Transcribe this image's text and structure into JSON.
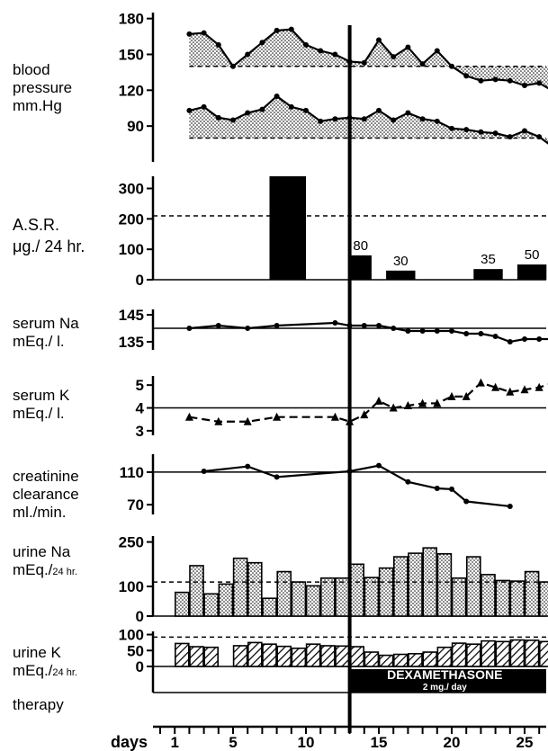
{
  "days_label": "days",
  "x_ticks": [
    1,
    5,
    10,
    15,
    20,
    25
  ],
  "colors": {
    "ink": "#000000",
    "fill": "#b8b8b8",
    "background": "#ffffff"
  },
  "panels": {
    "bp": {
      "label_lines": [
        "blood",
        "pressure",
        "mm.Hg"
      ]
    },
    "asr": {
      "line1": "A.S.R.",
      "line2_main": "μg./ 24 hr."
    },
    "na": {
      "line1": "serum Na",
      "line2": "mEq./ l."
    },
    "k": {
      "line1": "serum K",
      "line2": "mEq./ l."
    },
    "cr": {
      "label_lines": [
        "creatinine",
        "clearance",
        "ml./min."
      ]
    },
    "una": {
      "line1": "urine Na",
      "line2_main": "mEq./",
      "line2_sub": "24 hr."
    },
    "uk": {
      "line1": "urine K",
      "line2_main": "mEq./",
      "line2_sub": "24 hr."
    },
    "therapy": {
      "label": "therapy",
      "drug": "DEXAMETHASONE",
      "dose": "2 mg./ day"
    }
  },
  "chart_data": {
    "type": "multi-panel",
    "x_label": "days",
    "x_range": [
      0,
      28
    ],
    "therapy_start_day": 13,
    "panels": [
      {
        "id": "bp",
        "type": "line",
        "ylabel": "blood pressure mm.Hg",
        "y_ticks": [
          90,
          120,
          150,
          180
        ],
        "ylim": [
          60,
          185
        ],
        "systolic_reference": 140,
        "diastolic_reference": 80,
        "series": [
          {
            "x": [
              2,
              3,
              4,
              5,
              6,
              7,
              8,
              9,
              10,
              11,
              12,
              13,
              14,
              15,
              16,
              17,
              18,
              19,
              20,
              21,
              22,
              23,
              24,
              25,
              26,
              27
            ],
            "y": [
              167,
              168,
              158,
              140,
              150,
              160,
              170,
              171,
              158,
              153,
              150,
              144,
              143,
              162,
              148,
              156,
              142,
              153,
              140,
              132,
              128,
              129,
              128,
              124,
              126,
              119
            ]
          },
          {
            "x": [
              2,
              3,
              4,
              5,
              6,
              7,
              8,
              9,
              10,
              11,
              12,
              13,
              14,
              15,
              16,
              17,
              18,
              19,
              20,
              21,
              22,
              23,
              24,
              25,
              26,
              27
            ],
            "y": [
              103,
              106,
              97,
              95,
              101,
              104,
              115,
              106,
              103,
              94,
              96,
              97,
              96,
              103,
              95,
              101,
              96,
              94,
              88,
              87,
              85,
              84,
              81,
              86,
              81,
              72
            ]
          }
        ]
      },
      {
        "id": "asr",
        "type": "bar",
        "ylabel": "A.S.R. μg./ 24 hr.",
        "y_ticks": [
          0,
          100,
          200,
          300
        ],
        "ylim": [
          0,
          340
        ],
        "reference": 210,
        "bars": [
          {
            "day_start": 7.5,
            "day_end": 10,
            "value": 370,
            "label": ""
          },
          {
            "day_start": 13,
            "day_end": 14.5,
            "value": 80,
            "label": "80"
          },
          {
            "day_start": 15.5,
            "day_end": 17.5,
            "value": 30,
            "label": "30"
          },
          {
            "day_start": 21.5,
            "day_end": 23.5,
            "value": 35,
            "label": "35"
          },
          {
            "day_start": 24.5,
            "day_end": 26.5,
            "value": 50,
            "label": "50"
          }
        ]
      },
      {
        "id": "na",
        "type": "line",
        "ylabel": "serum Na mEq./ l.",
        "y_ticks": [
          135,
          145
        ],
        "ylim": [
          132,
          147
        ],
        "reference": 140,
        "series": [
          {
            "x": [
              2,
              4,
              6,
              8,
              12,
              13,
              14,
              15,
              16,
              17,
              18,
              19,
              20,
              21,
              22,
              23,
              24,
              25,
              26,
              27
            ],
            "y": [
              140,
              141,
              140,
              141,
              142,
              141,
              141,
              141,
              140,
              139,
              139,
              139,
              139,
              138,
              138,
              137,
              135,
              136,
              136,
              136
            ]
          }
        ]
      },
      {
        "id": "k",
        "type": "line",
        "ylabel": "serum K mEq./ l.",
        "y_ticks": [
          3,
          4,
          5
        ],
        "ylim": [
          2.8,
          5.4
        ],
        "reference": 4,
        "series": [
          {
            "x": [
              2,
              4,
              6,
              8,
              12,
              13,
              14,
              15,
              16,
              17,
              18,
              19,
              20,
              21,
              22,
              23,
              24,
              25,
              26,
              27
            ],
            "y": [
              3.6,
              3.4,
              3.4,
              3.6,
              3.6,
              3.4,
              3.7,
              4.3,
              4.0,
              4.1,
              4.2,
              4.2,
              4.5,
              4.5,
              5.1,
              4.9,
              4.7,
              4.8,
              4.9,
              5.1
            ]
          }
        ]
      },
      {
        "id": "cr",
        "type": "line",
        "ylabel": "creatinine clearance ml./min.",
        "y_ticks": [
          70,
          110
        ],
        "ylim": [
          58,
          132
        ],
        "reference": 110,
        "series": [
          {
            "x": [
              3,
              6,
              8,
              13,
              15,
              17,
              19,
              20,
              21,
              24
            ],
            "y": [
              111,
              117,
              104,
              111,
              118,
              98,
              90,
              89,
              74,
              68
            ]
          }
        ]
      },
      {
        "id": "una",
        "type": "bar",
        "ylabel": "urine Na mEq./24 hr.",
        "y_ticks": [
          0,
          100,
          250
        ],
        "ylim": [
          0,
          270
        ],
        "reference": 115,
        "days": [
          1,
          2,
          3,
          4,
          5,
          6,
          7,
          8,
          9,
          10,
          11,
          12,
          13,
          14,
          15,
          16,
          17,
          18,
          19,
          20,
          21,
          22,
          23,
          24,
          25,
          26
        ],
        "values": [
          80,
          170,
          75,
          108,
          195,
          180,
          60,
          150,
          115,
          102,
          128,
          128,
          175,
          130,
          162,
          200,
          212,
          230,
          210,
          128,
          200,
          140,
          120,
          118,
          150,
          115
        ]
      },
      {
        "id": "uk",
        "type": "bar",
        "ylabel": "urine K mEq./24 hr.",
        "y_ticks": [
          0,
          50,
          100
        ],
        "ylim": [
          0,
          110
        ],
        "reference": 92,
        "days": [
          1,
          2,
          3,
          4,
          5,
          6,
          7,
          8,
          9,
          10,
          11,
          12,
          13,
          14,
          15,
          16,
          17,
          18,
          19,
          20,
          21,
          22,
          23,
          24,
          25,
          26
        ],
        "values": [
          72,
          62,
          60,
          0,
          65,
          75,
          70,
          63,
          57,
          70,
          65,
          64,
          62,
          45,
          35,
          38,
          40,
          45,
          60,
          73,
          70,
          80,
          78,
          83,
          82,
          78
        ]
      }
    ]
  }
}
